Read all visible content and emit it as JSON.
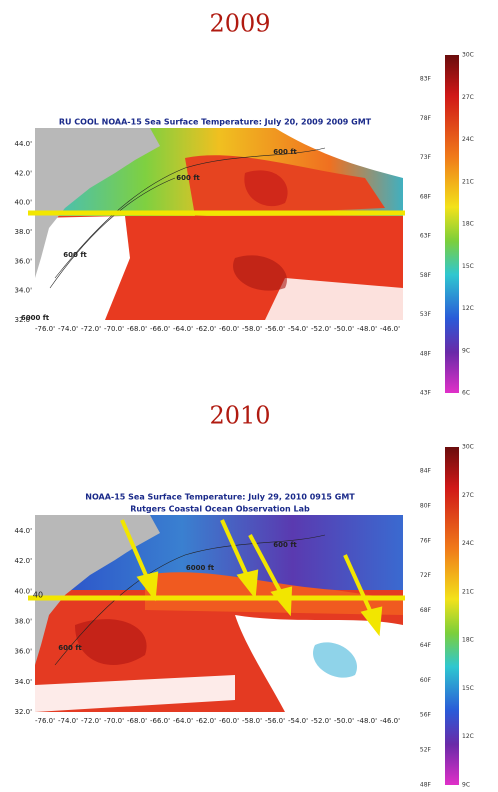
{
  "panels": [
    {
      "year": "2009",
      "map": {
        "title": "RU COOL  NOAA-15 Sea Surface Temperature:  July 20, 2009 2009 GMT",
        "lat_labels": [
          "44.0'",
          "42.0'",
          "40.0'",
          "38.0'",
          "36.0'",
          "34.0'",
          "32.0'"
        ],
        "lon_labels": [
          "-76.0'",
          "-74.0'",
          "-72.0'",
          "-70.0'",
          "-68.0'",
          "-66.0'",
          "-64.0'",
          "-62.0'",
          "-60.0'",
          "-58.0'",
          "-56.0'",
          "-54.0'",
          "-52.0'",
          "-50.0'",
          "-48.0'",
          "-46.0'"
        ],
        "contour_labels": [
          "600 ft",
          "6000 ft",
          "600 ft",
          "600 ft"
        ]
      },
      "colorbar": {
        "f_labels": [
          "83F",
          "78F",
          "73F",
          "68F",
          "63F",
          "58F",
          "53F",
          "48F",
          "43F"
        ],
        "c_labels": [
          "30C",
          "27C",
          "24C",
          "21C",
          "18C",
          "15C",
          "12C",
          "9C",
          "6C"
        ]
      }
    },
    {
      "year": "2010",
      "map": {
        "title": "NOAA-15 Sea Surface Temperature:  July 29, 2010 0915 GMT",
        "subtitle": "Rutgers Coastal Ocean Observation Lab",
        "marker": "40",
        "lat_labels": [
          "44.0'",
          "42.0'",
          "40.0'",
          "38.0'",
          "36.0'",
          "34.0'",
          "32.0'"
        ],
        "lon_labels": [
          "-76.0'",
          "-74.0'",
          "-72.0'",
          "-70.0'",
          "-68.0'",
          "-66.0'",
          "-64.0'",
          "-62.0'",
          "-60.0'",
          "-58.0'",
          "-56.0'",
          "-54.0'",
          "-52.0'",
          "-50.0'",
          "-48.0'",
          "-46.0'"
        ],
        "contour_labels": [
          "600 ft",
          "6000 ft",
          "600 ft"
        ]
      },
      "colorbar": {
        "f_labels": [
          "84F",
          "80F",
          "76F",
          "72F",
          "68F",
          "64F",
          "60F",
          "56F",
          "52F",
          "48F"
        ],
        "c_labels": [
          "30C",
          "27C",
          "24C",
          "21C",
          "18C",
          "15C",
          "12C",
          "9C"
        ]
      }
    }
  ]
}
